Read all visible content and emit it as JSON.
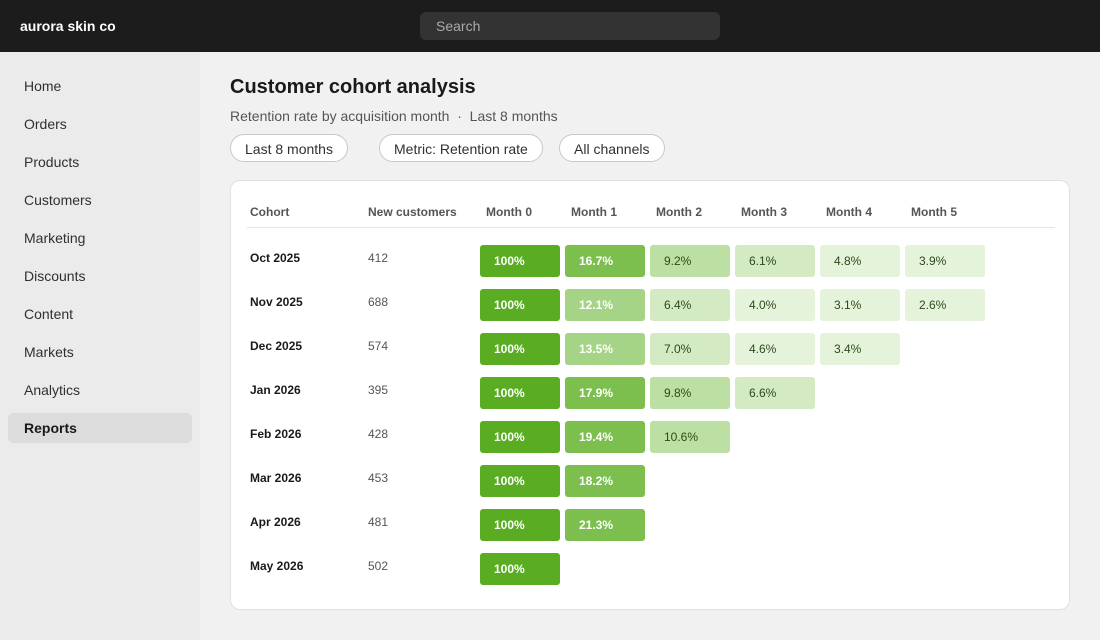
{
  "header": {
    "brand": "aurora skin co",
    "search_placeholder": "Search"
  },
  "nav": [
    "Home",
    "Orders",
    "Products",
    "Customers",
    "Marketing",
    "Discounts",
    "Content",
    "Markets",
    "Analytics",
    "Reports"
  ],
  "page": {
    "title": "Customer cohort analysis",
    "subtitle": "Retention rate by acquisition month  ·  Last 8 months",
    "filters": [
      "Last 8 months",
      "Metric: Retention rate",
      "All channels"
    ]
  },
  "table": {
    "columns": [
      "Cohort",
      "New customers",
      "Month 0",
      "Month 1",
      "Month 2",
      "Month 3",
      "Month 4",
      "Month 5"
    ],
    "rows": [
      {
        "cohort": "Oct 2025",
        "new_customers": 412,
        "retention": [
          "100%",
          "16.7%",
          "9.2%",
          "6.1%",
          "4.8%",
          "3.9%"
        ]
      },
      {
        "cohort": "Nov 2025",
        "new_customers": 688,
        "retention": [
          "100%",
          "12.1%",
          "6.4%",
          "4.0%",
          "3.1%",
          "2.6%"
        ]
      },
      {
        "cohort": "Dec 2025",
        "new_customers": 574,
        "retention": [
          "100%",
          "13.5%",
          "7.0%",
          "4.6%",
          "3.4%"
        ]
      },
      {
        "cohort": "Jan 2026",
        "new_customers": 395,
        "retention": [
          "100%",
          "17.9%",
          "9.8%",
          "6.6%"
        ]
      },
      {
        "cohort": "Feb 2026",
        "new_customers": 428,
        "retention": [
          "100%",
          "19.4%",
          "10.6%"
        ]
      },
      {
        "cohort": "Mar 2026",
        "new_customers": 453,
        "retention": [
          "100%",
          "18.2%"
        ]
      },
      {
        "cohort": "Apr 2026",
        "new_customers": 481,
        "retention": [
          "100%",
          "21.3%"
        ]
      },
      {
        "cohort": "May 2026",
        "new_customers": 502,
        "retention": [
          "100%"
        ]
      }
    ]
  }
}
